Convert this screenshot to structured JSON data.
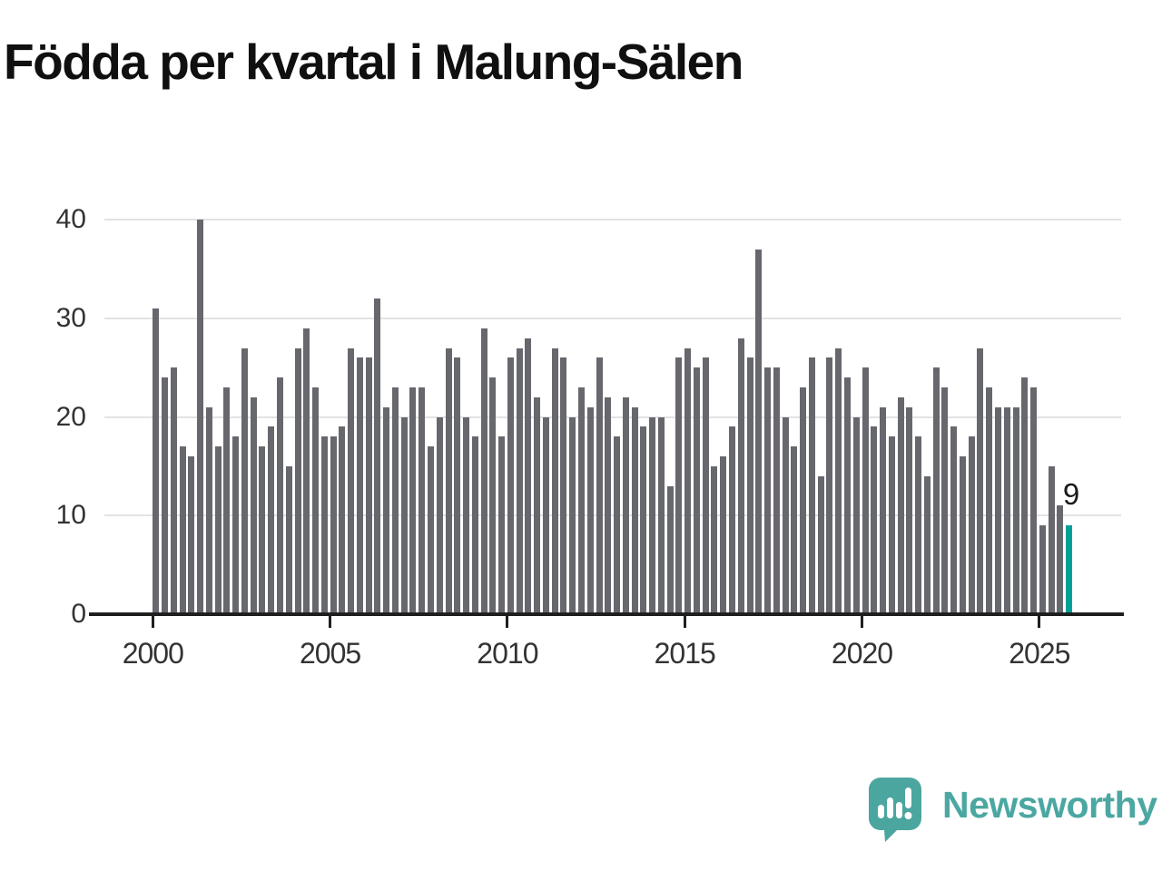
{
  "title": "Födda per kvartal i Malung-Sälen",
  "chart_data": {
    "type": "bar",
    "title": "Födda per kvartal i Malung-Sälen",
    "x_unit": "quarter",
    "x_start": "2000-Q1",
    "x_end": "2025-Q4",
    "values": [
      31,
      24,
      25,
      17,
      16,
      40,
      21,
      17,
      23,
      18,
      27,
      22,
      17,
      19,
      24,
      15,
      27,
      29,
      23,
      18,
      18,
      19,
      27,
      26,
      26,
      32,
      21,
      23,
      20,
      23,
      23,
      17,
      20,
      27,
      26,
      20,
      18,
      29,
      24,
      18,
      26,
      27,
      28,
      22,
      20,
      27,
      26,
      20,
      23,
      21,
      26,
      22,
      18,
      22,
      21,
      19,
      20,
      20,
      13,
      26,
      27,
      25,
      26,
      15,
      16,
      19,
      28,
      26,
      37,
      25,
      25,
      20,
      17,
      23,
      26,
      14,
      26,
      27,
      24,
      20,
      25,
      19,
      21,
      18,
      22,
      21,
      18,
      14,
      25,
      23,
      19,
      16,
      18,
      27,
      23,
      21,
      21,
      21,
      24,
      23,
      9,
      15,
      11,
      9
    ],
    "highlight_last_bar": true,
    "highlight_value_label": "9",
    "ylim": [
      0,
      40
    ],
    "yticks": [
      "0",
      "10",
      "20",
      "30",
      "40"
    ],
    "xticks": [
      "2000",
      "2005",
      "2010",
      "2015",
      "2020",
      "2025"
    ],
    "grid": "horizontal",
    "legend": "none",
    "bar_color": "#67676E",
    "highlight_color": "#00A096",
    "axis_color": "#1f1f1f",
    "grid_color": "#e2e2e2",
    "tick_label_color": "#333333"
  },
  "footer": {
    "brand": "Newsworthy",
    "brand_color": "#4BA7A1"
  }
}
